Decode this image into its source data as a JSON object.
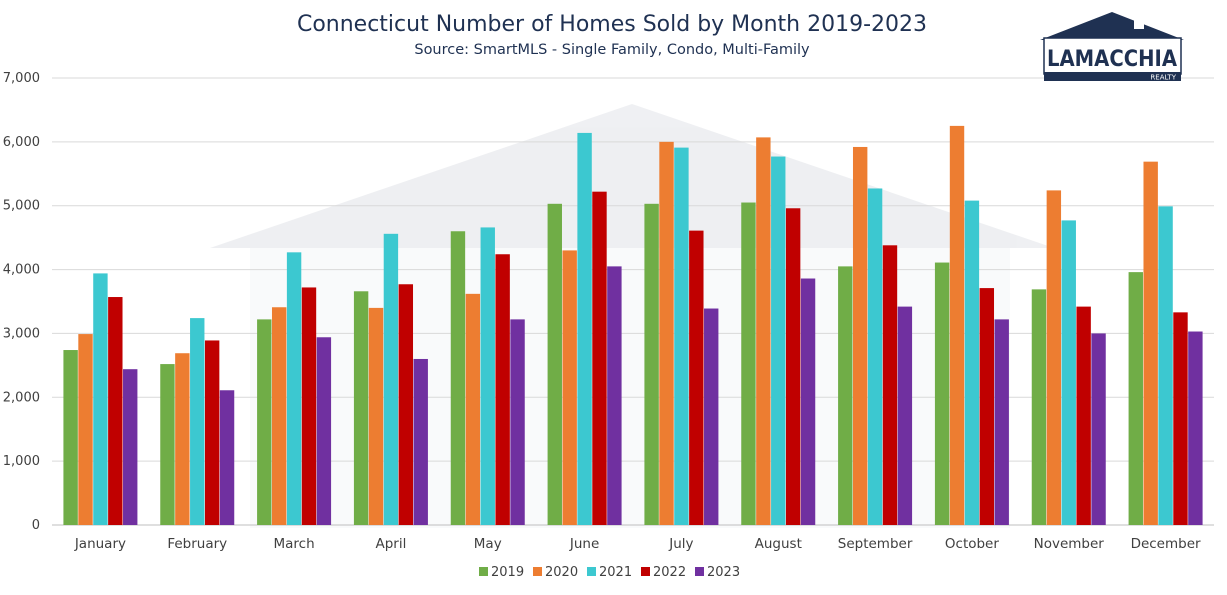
{
  "brand": {
    "name": "LAMACCHIA",
    "sub": "REALTY",
    "color": "#1f3152"
  },
  "chart_data": {
    "type": "bar",
    "title": "Connecticut Number of Homes Sold by Month 2019-2023",
    "subtitle": "Source: SmartMLS - Single Family, Condo, Multi-Family",
    "xlabel": "",
    "ylabel": "",
    "ylim": [
      0,
      7000
    ],
    "yticks": [
      0,
      1000,
      2000,
      3000,
      4000,
      5000,
      6000,
      7000
    ],
    "ytick_labels": [
      "0",
      "1,000",
      "2,000",
      "3,000",
      "4,000",
      "5,000",
      "6,000",
      "7,000"
    ],
    "grid": true,
    "legend_position": "bottom",
    "categories": [
      "January",
      "February",
      "March",
      "April",
      "May",
      "June",
      "July",
      "August",
      "September",
      "October",
      "November",
      "December"
    ],
    "series": [
      {
        "name": "2019",
        "color": "#70ad47",
        "values": [
          2740,
          2520,
          3220,
          3660,
          4600,
          5030,
          5030,
          5050,
          4050,
          4110,
          3690,
          3960
        ]
      },
      {
        "name": "2020",
        "color": "#ed7d31",
        "values": [
          2990,
          2690,
          3410,
          3400,
          3620,
          4300,
          6000,
          6070,
          5920,
          6250,
          5240,
          5690
        ]
      },
      {
        "name": "2021",
        "color": "#3cc8d0",
        "values": [
          3940,
          3240,
          4270,
          4560,
          4660,
          6140,
          5910,
          5770,
          5270,
          5080,
          4770,
          4990
        ]
      },
      {
        "name": "2022",
        "color": "#c00000",
        "values": [
          3570,
          2890,
          3720,
          3770,
          4240,
          5220,
          4610,
          4960,
          4380,
          3710,
          3420,
          3330
        ]
      },
      {
        "name": "2023",
        "color": "#7030a0",
        "values": [
          2440,
          2110,
          2940,
          2600,
          3220,
          4050,
          3390,
          3860,
          3420,
          3220,
          3000,
          3030
        ]
      }
    ]
  }
}
